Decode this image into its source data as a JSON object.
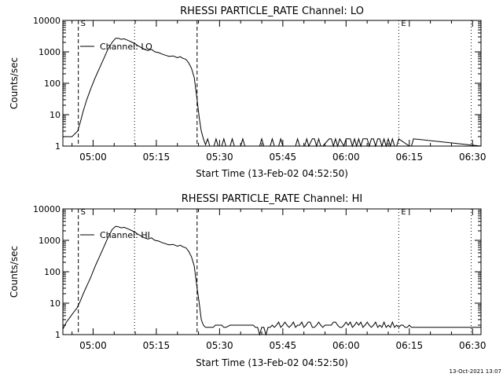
{
  "footer_timestamp": "13-Oct-2021 13:07",
  "chart_data": [
    {
      "type": "line",
      "title": "RHESSI PARTICLE_RATE Channel: LO",
      "xlabel": "Start Time (13-Feb-02 04:52:50)",
      "ylabel": "Counts/sec",
      "y_scale": "log",
      "ylim": [
        1,
        10000
      ],
      "xlim": [
        "04:52:50",
        "06:32:00"
      ],
      "x_ticks": [
        "05:00",
        "05:15",
        "05:30",
        "05:45",
        "06:00",
        "06:15",
        "06:30"
      ],
      "y_ticks": [
        "1",
        "10",
        "100",
        "1000",
        "10000"
      ],
      "legend": "Channel: LO",
      "legend_position": "top-left",
      "markers": [
        {
          "label": "S",
          "time": "04:56:30",
          "style": "dashed"
        },
        {
          "label": "",
          "time": "05:24:40",
          "style": "dashed"
        },
        {
          "label": "",
          "time": "05:09:50",
          "style": "dotted"
        },
        {
          "label": "E",
          "time": "06:12:30",
          "style": "dotted"
        },
        {
          "label": "",
          "time": "06:29:40",
          "style": "dotted"
        }
      ],
      "series": [
        {
          "name": "Channel: LO",
          "x": [
            "04:52:50",
            "04:55:00",
            "04:56:20",
            "04:57:00",
            "04:57:40",
            "04:58:30",
            "04:59:30",
            "05:00:30",
            "05:01:30",
            "05:02:30",
            "05:03:30",
            "05:04:30",
            "05:05:20",
            "05:06:00",
            "05:06:40",
            "05:07:20",
            "05:08:00",
            "05:08:40",
            "05:09:20",
            "05:10:00",
            "05:10:40",
            "05:11:20",
            "05:12:10",
            "05:13:00",
            "05:13:50",
            "05:14:40",
            "05:15:30",
            "05:16:20",
            "05:17:10",
            "05:18:00",
            "05:19:00",
            "05:20:00",
            "05:20:40",
            "05:21:20",
            "05:22:00",
            "05:22:40",
            "05:23:20",
            "05:24:00",
            "05:24:40",
            "05:25:10",
            "05:25:40",
            "05:26:10",
            "05:26:40",
            "05:27:10",
            "05:27:40",
            "05:28:10",
            "05:28:40",
            "05:29:10",
            "05:29:40",
            "05:30:30",
            "05:31:00",
            "05:31:30",
            "05:32:30",
            "05:33:00",
            "05:33:30",
            "05:35:00",
            "05:35:30",
            "05:36:00",
            "05:39:30",
            "05:40:00",
            "05:40:30",
            "05:42:00",
            "05:42:30",
            "05:43:00",
            "05:44:00",
            "05:44:30",
            "05:45:00",
            "05:48:00",
            "05:48:30",
            "05:49:00",
            "05:50:10",
            "05:50:40",
            "05:51:10",
            "05:52:00",
            "05:52:30",
            "05:53:00",
            "05:53:30",
            "05:54:00",
            "05:54:30",
            "05:56:00",
            "05:56:30",
            "05:57:00",
            "05:57:30",
            "05:58:00",
            "05:58:30",
            "05:59:30",
            "06:00:00",
            "06:00:30",
            "06:01:00",
            "06:01:30",
            "06:02:00",
            "06:02:30",
            "06:03:00",
            "06:03:30",
            "06:04:00",
            "06:05:00",
            "06:05:30",
            "06:06:00",
            "06:06:30",
            "06:07:00",
            "06:07:30",
            "06:08:00",
            "06:08:30",
            "06:09:00",
            "06:09:30",
            "06:10:00",
            "06:10:30",
            "06:11:00",
            "06:11:30",
            "06:12:00",
            "06:12:30",
            "06:15:00",
            "06:15:30",
            "06:16:00",
            "06:32:00"
          ],
          "y": [
            2,
            2,
            3,
            6,
            13,
            30,
            70,
            150,
            300,
            600,
            1200,
            2000,
            2700,
            2700,
            2500,
            2600,
            2400,
            2200,
            2000,
            1800,
            1550,
            1400,
            1200,
            1100,
            1200,
            1000,
            950,
            850,
            780,
            720,
            740,
            650,
            700,
            620,
            580,
            450,
            300,
            150,
            30,
            8,
            3,
            1.7,
            1.1,
            1.7,
            1,
            1,
            1,
            1.7,
            1,
            1,
            1.7,
            1,
            1,
            1.7,
            1,
            1,
            1.7,
            1,
            1,
            1.7,
            1,
            1,
            1.7,
            1,
            1,
            1.7,
            1,
            1,
            1.7,
            1,
            1,
            1.7,
            1,
            1.7,
            1.7,
            1,
            1.7,
            1,
            1,
            1.7,
            1.7,
            1,
            1.7,
            1,
            1.7,
            1,
            1.7,
            1.7,
            1.7,
            1,
            1.7,
            1,
            1.7,
            1,
            1.7,
            1.7,
            1,
            1.7,
            1.7,
            1,
            1.7,
            1.7,
            1,
            1.7,
            1,
            1.7,
            1,
            1.7,
            1,
            1,
            1.7,
            1,
            1,
            1.7,
            1
          ]
        }
      ]
    },
    {
      "type": "line",
      "title": "RHESSI PARTICLE_RATE Channel: HI",
      "xlabel": "Start Time (13-Feb-02 04:52:50)",
      "ylabel": "Counts/sec",
      "y_scale": "log",
      "ylim": [
        1,
        10000
      ],
      "xlim": [
        "04:52:50",
        "06:32:00"
      ],
      "x_ticks": [
        "05:00",
        "05:15",
        "05:30",
        "05:45",
        "06:00",
        "06:15",
        "06:30"
      ],
      "y_ticks": [
        "1",
        "10",
        "100",
        "1000",
        "10000"
      ],
      "legend": "Channel: HI",
      "legend_position": "top-left",
      "markers": [
        {
          "label": "S",
          "time": "04:56:30",
          "style": "dashed"
        },
        {
          "label": "",
          "time": "05:24:40",
          "style": "dashed"
        },
        {
          "label": "",
          "time": "05:09:50",
          "style": "dotted"
        },
        {
          "label": "E",
          "time": "06:12:30",
          "style": "dotted"
        },
        {
          "label": "",
          "time": "06:29:40",
          "style": "dotted"
        }
      ],
      "series": [
        {
          "name": "Channel: HI",
          "x": [
            "04:52:50",
            "04:53:40",
            "04:54:30",
            "04:55:20",
            "04:56:10",
            "04:57:00",
            "04:57:40",
            "04:58:30",
            "04:59:30",
            "05:00:30",
            "05:01:30",
            "05:02:30",
            "05:03:30",
            "05:04:30",
            "05:05:20",
            "05:06:00",
            "05:06:40",
            "05:07:20",
            "05:08:00",
            "05:08:40",
            "05:09:20",
            "05:10:00",
            "05:10:40",
            "05:11:20",
            "05:12:10",
            "05:13:00",
            "05:13:50",
            "05:14:40",
            "05:15:30",
            "05:16:20",
            "05:17:10",
            "05:18:00",
            "05:19:00",
            "05:20:00",
            "05:20:40",
            "05:21:20",
            "05:22:00",
            "05:22:40",
            "05:23:20",
            "05:24:00",
            "05:24:40",
            "05:25:10",
            "05:25:40",
            "05:26:10",
            "05:26:40",
            "05:28:00",
            "05:28:30",
            "05:29:00",
            "05:29:30",
            "05:30:30",
            "05:31:00",
            "05:31:30",
            "05:32:30",
            "05:38:00",
            "05:38:30",
            "05:39:00",
            "05:39:30",
            "05:40:00",
            "05:40:30",
            "05:41:00",
            "05:41:30",
            "05:42:00",
            "05:42:30",
            "05:43:00",
            "05:43:30",
            "05:44:00",
            "05:44:30",
            "05:45:00",
            "05:45:30",
            "05:46:00",
            "05:46:30",
            "05:47:00",
            "05:47:30",
            "05:48:00",
            "05:48:30",
            "05:49:00",
            "05:49:30",
            "05:50:00",
            "05:50:30",
            "05:51:00",
            "05:51:30",
            "05:52:00",
            "05:52:30",
            "05:53:00",
            "05:53:30",
            "05:54:00",
            "05:54:30",
            "05:55:00",
            "05:55:30",
            "05:56:00",
            "05:56:30",
            "05:57:00",
            "05:57:30",
            "05:58:00",
            "05:58:30",
            "05:59:00",
            "05:59:30",
            "06:00:00",
            "06:00:30",
            "06:01:00",
            "06:01:30",
            "06:02:00",
            "06:02:30",
            "06:03:00",
            "06:03:30",
            "06:04:00",
            "06:04:30",
            "06:05:00",
            "06:05:30",
            "06:06:00",
            "06:06:30",
            "06:07:00",
            "06:07:30",
            "06:08:00",
            "06:08:30",
            "06:09:00",
            "06:09:30",
            "06:10:00",
            "06:10:30",
            "06:11:00",
            "06:11:30",
            "06:12:00",
            "06:12:30",
            "06:13:00",
            "06:13:30",
            "06:14:00",
            "06:14:30",
            "06:15:00",
            "06:15:30",
            "06:16:00",
            "06:17:00",
            "06:17:30",
            "06:18:00",
            "06:18:30",
            "06:19:00",
            "06:20:00",
            "06:20:30",
            "06:22:00",
            "06:23:00",
            "06:24:00",
            "06:26:00",
            "06:27:00",
            "06:28:00",
            "06:29:00",
            "06:30:00",
            "06:31:00",
            "06:32:00"
          ],
          "y": [
            1.5,
            2.5,
            3.5,
            5,
            7,
            12,
            20,
            35,
            70,
            150,
            300,
            600,
            1200,
            2200,
            2800,
            2700,
            2500,
            2600,
            2400,
            2200,
            2000,
            1800,
            1550,
            1400,
            1200,
            1100,
            1200,
            1000,
            950,
            850,
            780,
            720,
            740,
            650,
            700,
            620,
            580,
            450,
            300,
            150,
            30,
            10,
            3,
            2,
            1.7,
            1.7,
            1.7,
            2,
            2,
            2,
            1.7,
            1.7,
            2,
            2,
            1.7,
            1.7,
            1,
            1.7,
            1.7,
            1,
            1.7,
            1.7,
            2,
            1.7,
            2,
            2.5,
            1.7,
            2,
            2.5,
            2,
            1.7,
            2,
            2.5,
            1.7,
            2,
            2,
            2.5,
            1.7,
            2,
            2.5,
            2.5,
            1.7,
            1.7,
            2,
            2.5,
            2,
            1.7,
            2,
            2,
            2,
            2,
            2.5,
            2.5,
            2,
            1.7,
            1.7,
            2,
            2.5,
            2,
            2.5,
            1.7,
            2,
            2.5,
            2,
            2.5,
            1.7,
            2,
            2.5,
            2,
            1.7,
            2,
            2.5,
            1.7,
            2,
            1.7,
            2.5,
            1.7,
            2,
            1.7,
            2.5,
            1.7,
            2,
            1.7,
            2,
            2,
            1.7,
            1.7,
            2,
            1.7,
            1.7,
            1.7,
            1.7,
            1.7,
            1.7,
            1.7,
            1.7,
            1.7,
            1.7,
            1.7,
            1.7,
            1.7,
            1.7,
            1.7,
            1.7,
            1.7,
            1.7,
            1.7
          ]
        }
      ]
    }
  ]
}
